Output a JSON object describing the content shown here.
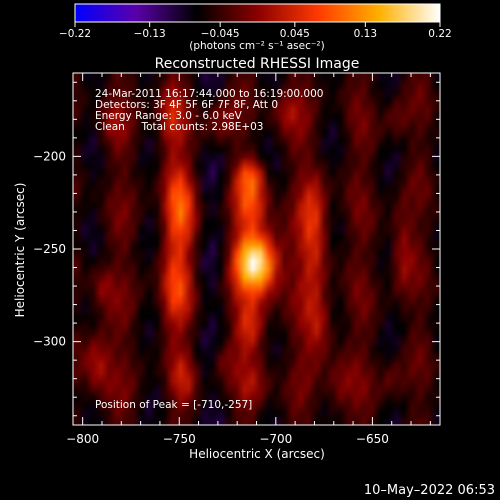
{
  "chart_data": {
    "type": "heatmap",
    "title": "Reconstructed RHESSI Image",
    "xlabel": "Heliocentric X (arcsec)",
    "ylabel": "Heliocentric Y (arcsec)",
    "xlim": [
      -805,
      -615
    ],
    "ylim": [
      -345,
      -155
    ],
    "x_ticks": [
      -800,
      -750,
      -700,
      -650
    ],
    "x_tick_labels": [
      "−800",
      "−750",
      "−700",
      "−650"
    ],
    "y_ticks": [
      -200,
      -250,
      -300
    ],
    "y_tick_labels": [
      "−200",
      "−250",
      "−300"
    ],
    "colorbar": {
      "min": -0.22,
      "max": 0.22,
      "ticks": [
        -0.22,
        -0.13,
        -0.045,
        0.045,
        0.13,
        0.22
      ],
      "tick_labels": [
        "−0.22",
        "−0.13",
        "−0.045",
        "0.045",
        "0.13",
        "0.22"
      ],
      "unit_label": "(photons cm⁻² s⁻¹ asec⁻²)",
      "colors": [
        "#0000ff",
        "#5a00aa",
        "#000000",
        "#8a0000",
        "#ff3a00",
        "#ffb000",
        "#ffffff"
      ]
    },
    "annotations": [
      "24-Mar-2011 16:17:44.000 to 16:19:00.000",
      "Detectors: 3F 4F 5F 6F 7F 8F, Att 0",
      "Energy Range: 3.0 - 6.0 keV",
      "Clean     Total counts: 2.98E+03"
    ],
    "peak_label": "Position of Peak = [-710,-257]",
    "peak": {
      "x": -710,
      "y": -257,
      "value": 0.22
    },
    "sources": [
      {
        "x": -710,
        "y": -257,
        "sx": 8,
        "sy": 12,
        "a": 0.26
      },
      {
        "x": -713,
        "y": -225,
        "sx": 6,
        "sy": 10,
        "a": 0.12
      },
      {
        "x": -713,
        "y": -210,
        "sx": 5,
        "sy": 6,
        "a": 0.09
      },
      {
        "x": -713,
        "y": -290,
        "sx": 6,
        "sy": 10,
        "a": 0.1
      },
      {
        "x": -712,
        "y": -325,
        "sx": 6,
        "sy": 9,
        "a": 0.07
      },
      {
        "x": -750,
        "y": -230,
        "sx": 6,
        "sy": 18,
        "a": 0.13
      },
      {
        "x": -752,
        "y": -275,
        "sx": 6,
        "sy": 14,
        "a": 0.1
      },
      {
        "x": -755,
        "y": -180,
        "sx": 5,
        "sy": 12,
        "a": 0.08
      },
      {
        "x": -748,
        "y": -320,
        "sx": 5,
        "sy": 10,
        "a": 0.06
      },
      {
        "x": -680,
        "y": -240,
        "sx": 5,
        "sy": 20,
        "a": 0.11
      },
      {
        "x": -678,
        "y": -290,
        "sx": 5,
        "sy": 12,
        "a": 0.09
      },
      {
        "x": -668,
        "y": -325,
        "sx": 5,
        "sy": 10,
        "a": 0.06
      },
      {
        "x": -730,
        "y": -180,
        "sx": 6,
        "sy": 10,
        "a": 0.06
      },
      {
        "x": -793,
        "y": -310,
        "sx": 5,
        "sy": 14,
        "a": 0.08
      },
      {
        "x": -790,
        "y": -270,
        "sx": 4,
        "sy": 8,
        "a": 0.05
      },
      {
        "x": -785,
        "y": -180,
        "sx": 4,
        "sy": 8,
        "a": 0.04
      },
      {
        "x": -635,
        "y": -250,
        "sx": 4,
        "sy": 16,
        "a": 0.07
      },
      {
        "x": -640,
        "y": -320,
        "sx": 4,
        "sy": 8,
        "a": 0.04
      },
      {
        "x": -638,
        "y": -180,
        "sx": 4,
        "sy": 8,
        "a": 0.04
      },
      {
        "x": -728,
        "y": -310,
        "sx": 4,
        "sy": 8,
        "a": 0.05
      },
      {
        "x": -695,
        "y": -175,
        "sx": 5,
        "sy": 8,
        "a": 0.06
      }
    ],
    "grid": false
  },
  "timestamp": "10–May–2022 06:53"
}
